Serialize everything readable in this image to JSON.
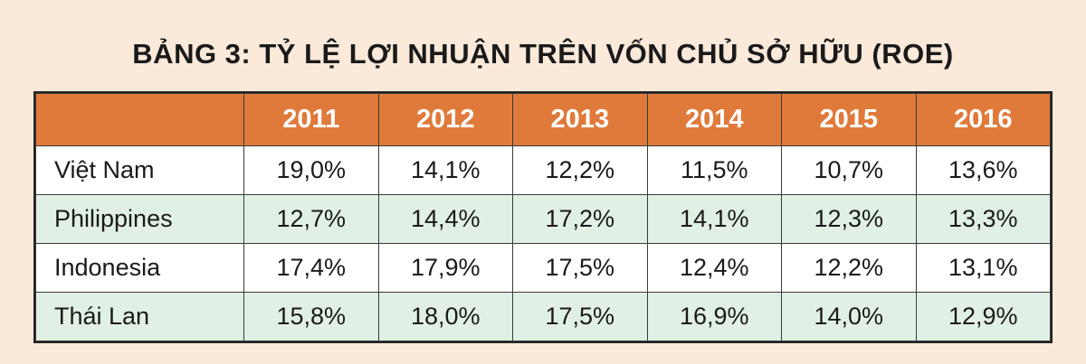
{
  "title": "BẢNG 3: TỶ LỆ LỢI NHUẬN TRÊN VỐN CHỦ SỞ HỮU (ROE)",
  "colors": {
    "background": "#fbe9d9",
    "header": "#e07a3a",
    "row_odd": "#ffffff",
    "row_even": "#e1f0e4"
  },
  "table": {
    "corner": "",
    "years": [
      "2011",
      "2012",
      "2013",
      "2014",
      "2015",
      "2016"
    ],
    "rows": [
      {
        "country": "Việt Nam",
        "values": [
          "19,0%",
          "14,1%",
          "12,2%",
          "11,5%",
          "10,7%",
          "13,6%"
        ]
      },
      {
        "country": "Philippines",
        "values": [
          "12,7%",
          "14,4%",
          "17,2%",
          "14,1%",
          "12,3%",
          "13,3%"
        ]
      },
      {
        "country": "Indonesia",
        "values": [
          "17,4%",
          "17,9%",
          "17,5%",
          "12,4%",
          "12,2%",
          "13,1%"
        ]
      },
      {
        "country": "Thái Lan",
        "values": [
          "15,8%",
          "18,0%",
          "17,5%",
          "16,9%",
          "14,0%",
          "12,9%"
        ]
      }
    ]
  },
  "chart_data": {
    "type": "table",
    "title": "BẢNG 3: TỶ LỆ LỢI NHUẬN TRÊN VỐN CHỦ SỞ HỮU (ROE)",
    "columns": [
      "2011",
      "2012",
      "2013",
      "2014",
      "2015",
      "2016"
    ],
    "series": [
      {
        "name": "Việt Nam",
        "values": [
          19.0,
          14.1,
          12.2,
          11.5,
          10.7,
          13.6
        ]
      },
      {
        "name": "Philippines",
        "values": [
          12.7,
          14.4,
          17.2,
          14.1,
          12.3,
          13.3
        ]
      },
      {
        "name": "Indonesia",
        "values": [
          17.4,
          17.9,
          17.5,
          12.4,
          12.2,
          13.1
        ]
      },
      {
        "name": "Thái Lan",
        "values": [
          15.8,
          18.0,
          17.5,
          16.9,
          14.0,
          12.9
        ]
      }
    ],
    "unit": "%"
  }
}
